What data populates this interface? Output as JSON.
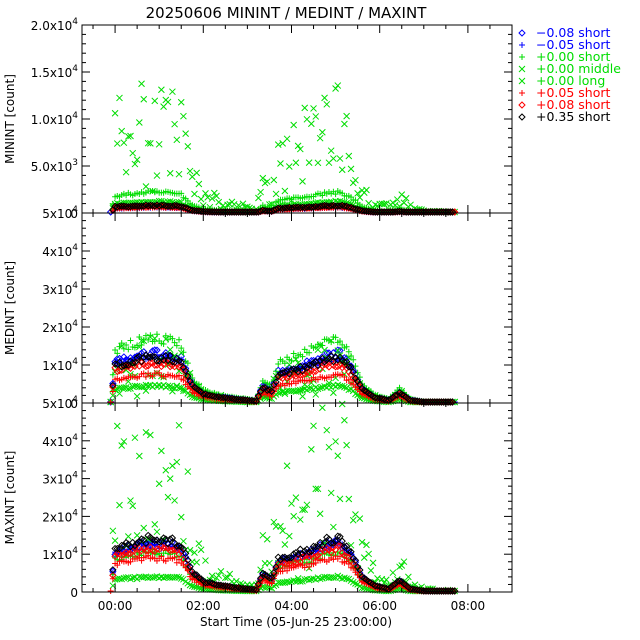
{
  "title": "20250606 MININT / MEDINT / MAXINT",
  "xlabel": "Start Time (05-Jun-25 23:00:00)",
  "chart_data": [
    {
      "type": "scatter",
      "title": "20250606 MININT / MEDINT / MAXINT",
      "ylabel": "MININT [count]",
      "ylim": [
        0,
        20000
      ],
      "yticks": [
        {
          "v": 0,
          "m": "0",
          "e": ""
        },
        {
          "v": 5000,
          "m": "5.0x10",
          "e": "3"
        },
        {
          "v": 10000,
          "m": "1.0x10",
          "e": "4"
        },
        {
          "v": 15000,
          "m": "1.5x10",
          "e": "4"
        },
        {
          "v": 20000,
          "m": "2.0x10",
          "e": "4"
        }
      ]
    },
    {
      "type": "scatter",
      "ylabel": "MEDINT [count]",
      "ylim": [
        0,
        50000
      ],
      "yticks": [
        {
          "v": 0,
          "m": "0",
          "e": ""
        },
        {
          "v": 10000,
          "m": "1x10",
          "e": "4"
        },
        {
          "v": 20000,
          "m": "2x10",
          "e": "4"
        },
        {
          "v": 30000,
          "m": "3x10",
          "e": "4"
        },
        {
          "v": 40000,
          "m": "4x10",
          "e": "4"
        },
        {
          "v": 50000,
          "m": "5x10",
          "e": "4"
        }
      ]
    },
    {
      "type": "scatter",
      "ylabel": "MAXINT [count]",
      "xlabel": "Start Time (05-Jun-25 23:00:00)",
      "ylim": [
        0,
        50000
      ],
      "yticks": [
        {
          "v": 0,
          "m": "0",
          "e": ""
        },
        {
          "v": 10000,
          "m": "1x10",
          "e": "4"
        },
        {
          "v": 20000,
          "m": "2x10",
          "e": "4"
        },
        {
          "v": 30000,
          "m": "3x10",
          "e": "4"
        },
        {
          "v": 40000,
          "m": "4x10",
          "e": "4"
        },
        {
          "v": 50000,
          "m": "5x10",
          "e": "4"
        }
      ]
    }
  ],
  "x_axis": {
    "unit": "hours since 00:00",
    "xlim": [
      -0.75,
      9.0
    ],
    "ticks": [
      {
        "v": 0,
        "label": "00:00"
      },
      {
        "v": 2,
        "label": "02:00"
      },
      {
        "v": 4,
        "label": "04:00"
      },
      {
        "v": 6,
        "label": "06:00"
      },
      {
        "v": 8,
        "label": "08:00"
      }
    ],
    "minor_step": 0.5
  },
  "series": [
    {
      "name": "−0.08 short",
      "marker": "diamond",
      "color": "#0000ff",
      "scale": [
        0.035,
        0.26,
        0.26
      ]
    },
    {
      "name": "−0.05 short",
      "marker": "plus",
      "color": "#0000ff",
      "scale": [
        0.03,
        0.24,
        0.25
      ]
    },
    {
      "name": "+0.00 short",
      "marker": "plus",
      "color": "#00dd00",
      "scale": [
        0.11,
        0.34,
        0.21
      ]
    },
    {
      "name": "+0.00 middle",
      "marker": "cross",
      "color": "#00dd00",
      "scale": [
        0.47,
        0.23,
        0.7
      ]
    },
    {
      "name": "+0.00 long",
      "marker": "cross",
      "color": "#00dd00",
      "scale": [
        0.06,
        0.09,
        0.08
      ]
    },
    {
      "name": "+0.05 short",
      "marker": "plus",
      "color": "#ff0000",
      "scale": [
        0.03,
        0.15,
        0.18
      ]
    },
    {
      "name": "+0.08 short",
      "marker": "diamond",
      "color": "#ff0000",
      "scale": [
        0.035,
        0.21,
        0.23
      ]
    },
    {
      "name": "+0.35 short",
      "marker": "diamond",
      "color": "#000000",
      "scale": [
        0.04,
        0.24,
        0.28
      ]
    }
  ],
  "activity_profile": [
    [
      -0.1,
      0.0
    ],
    [
      0.0,
      0.82
    ],
    [
      0.3,
      0.9
    ],
    [
      0.8,
      1.0
    ],
    [
      1.2,
      0.98
    ],
    [
      1.5,
      0.9
    ],
    [
      1.75,
      0.38
    ],
    [
      2.0,
      0.2
    ],
    [
      2.4,
      0.12
    ],
    [
      2.8,
      0.08
    ],
    [
      3.2,
      0.04
    ],
    [
      3.35,
      0.35
    ],
    [
      3.55,
      0.25
    ],
    [
      3.7,
      0.62
    ],
    [
      4.0,
      0.7
    ],
    [
      4.4,
      0.8
    ],
    [
      4.8,
      0.96
    ],
    [
      5.1,
      1.0
    ],
    [
      5.35,
      0.75
    ],
    [
      5.6,
      0.3
    ],
    [
      5.9,
      0.12
    ],
    [
      6.2,
      0.06
    ],
    [
      6.45,
      0.22
    ],
    [
      6.7,
      0.06
    ],
    [
      7.0,
      0.02
    ],
    [
      7.6,
      0.01
    ],
    [
      7.7,
      0.0
    ]
  ]
}
